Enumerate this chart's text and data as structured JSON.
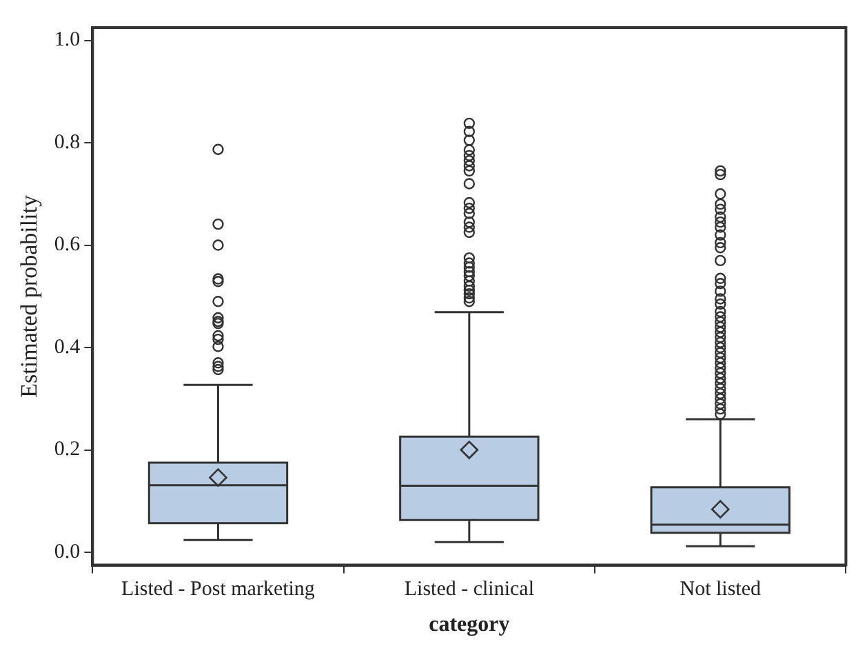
{
  "chart_data": {
    "type": "box",
    "xlabel": "category",
    "ylabel": "Estimated probability",
    "categories": [
      "Listed - Post marketing",
      "Listed - clinical",
      "Not listed"
    ],
    "color": "#b8cce4",
    "marker": "circle",
    "ylim": [
      -0.025,
      1.025
    ],
    "yticks": [
      {
        "value": 0,
        "label": "0.0"
      },
      0.2,
      0.4,
      0.6,
      0.8,
      {
        "value": 1,
        "label": "1.0"
      }
    ],
    "boxes": [
      {
        "low": 0.024,
        "q1": 0.057,
        "median": 0.131,
        "q3": 0.175,
        "high": 0.327,
        "mean": 0.146,
        "outliers": [
          0.787,
          0.641,
          0.6,
          0.534,
          0.529,
          0.49,
          0.458,
          0.451,
          0.447,
          0.423,
          0.416,
          0.402,
          0.37,
          0.363,
          0.357
        ]
      },
      {
        "low": 0.02,
        "q1": 0.063,
        "median": 0.13,
        "q3": 0.226,
        "high": 0.469,
        "mean": 0.2,
        "outliers": [
          0.838,
          0.822,
          0.805,
          0.786,
          0.775,
          0.765,
          0.755,
          0.745,
          0.72,
          0.683,
          0.672,
          0.662,
          0.645,
          0.635,
          0.625,
          0.575,
          0.565,
          0.557,
          0.548,
          0.54,
          0.53,
          0.52,
          0.512,
          0.505,
          0.497,
          0.49
        ]
      },
      {
        "low": 0.012,
        "q1": 0.038,
        "median": 0.054,
        "q3": 0.127,
        "high": 0.26,
        "mean": 0.084,
        "outliers": [
          0.745,
          0.738,
          0.7,
          0.68,
          0.67,
          0.655,
          0.645,
          0.635,
          0.62,
          0.605,
          0.595,
          0.57,
          0.535,
          0.525,
          0.51,
          0.495,
          0.485,
          0.47,
          0.46,
          0.45,
          0.44,
          0.43,
          0.42,
          0.41,
          0.4,
          0.39,
          0.38,
          0.37,
          0.36,
          0.35,
          0.34,
          0.33,
          0.32,
          0.31,
          0.3,
          0.29,
          0.28,
          0.27
        ]
      }
    ]
  }
}
